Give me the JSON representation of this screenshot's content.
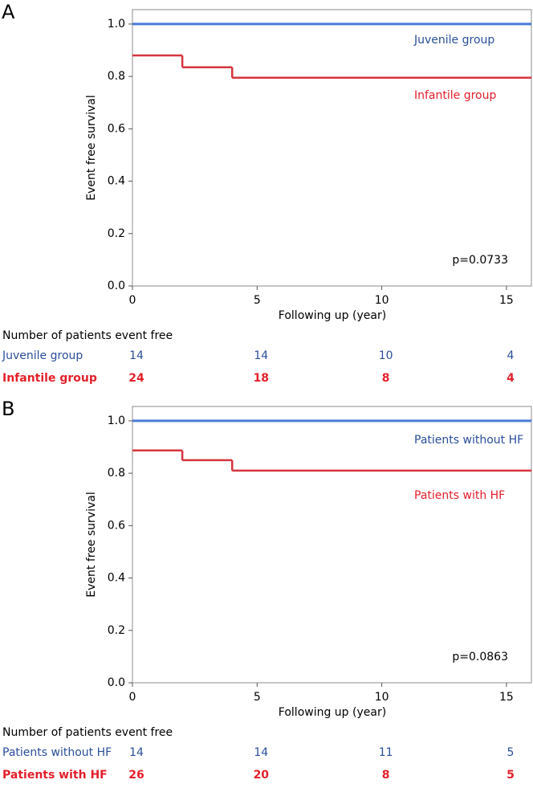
{
  "chart_data": [
    {
      "type": "step",
      "panel_label": "A",
      "ylabel": "Event free survival",
      "xlabel": "Following up (year)",
      "xlim": [
        0,
        16
      ],
      "xticks": [
        0,
        5,
        10,
        15
      ],
      "ylim": [
        0,
        1.055
      ],
      "yticks": [
        {
          "value": 0,
          "label": "0.0"
        },
        {
          "value": 0.2,
          "label": "0.2"
        },
        {
          "value": 0.4,
          "label": "0.4"
        },
        {
          "value": 0.6,
          "label": "0.6"
        },
        {
          "value": 0.8,
          "label": "0.8"
        },
        {
          "value": 1,
          "label": "1.0"
        }
      ],
      "series": [
        {
          "name": "Juvenile group",
          "color": "#4a7bd9",
          "x": [
            0
          ],
          "values": [
            1
          ]
        },
        {
          "name": "Infantile group",
          "color": "#d6343f",
          "x": [
            0,
            2,
            4
          ],
          "values": [
            0.88,
            0.835,
            0.795
          ]
        }
      ],
      "annotation": "p=0.0733",
      "risk_table": {
        "title": "Number of patients event free",
        "rows": [
          {
            "name": "Juvenile group",
            "counts": [
              14,
              14,
              10,
              4
            ]
          },
          {
            "name": "Infantile group",
            "counts": [
              24,
              18,
              8,
              4
            ]
          }
        ]
      }
    },
    {
      "type": "step",
      "panel_label": "B",
      "ylabel": "Event free survival",
      "xlabel": "Following up (year)",
      "xlim": [
        0,
        16
      ],
      "xticks": [
        0,
        5,
        10,
        15
      ],
      "ylim": [
        0,
        1.055
      ],
      "yticks": [
        {
          "value": 0,
          "label": "0.0"
        },
        {
          "value": 0.2,
          "label": "0.2"
        },
        {
          "value": 0.4,
          "label": "0.4"
        },
        {
          "value": 0.6,
          "label": "0.6"
        },
        {
          "value": 0.8,
          "label": "0.8"
        },
        {
          "value": 1,
          "label": "1.0"
        }
      ],
      "series": [
        {
          "name": "Patients without HF",
          "color": "#4a7bd9",
          "x": [
            0
          ],
          "values": [
            1
          ]
        },
        {
          "name": "Patients with HF",
          "color": "#d6343f",
          "x": [
            0,
            2,
            4
          ],
          "values": [
            0.887,
            0.85,
            0.81
          ]
        }
      ],
      "annotation": "p=0.0863",
      "risk_table": {
        "title": "Number of patients event free",
        "rows": [
          {
            "name": "Patients without HF",
            "counts": [
              14,
              14,
              11,
              5
            ]
          },
          {
            "name": "Patients with HF",
            "counts": [
              26,
              20,
              8,
              5
            ]
          }
        ]
      }
    }
  ]
}
